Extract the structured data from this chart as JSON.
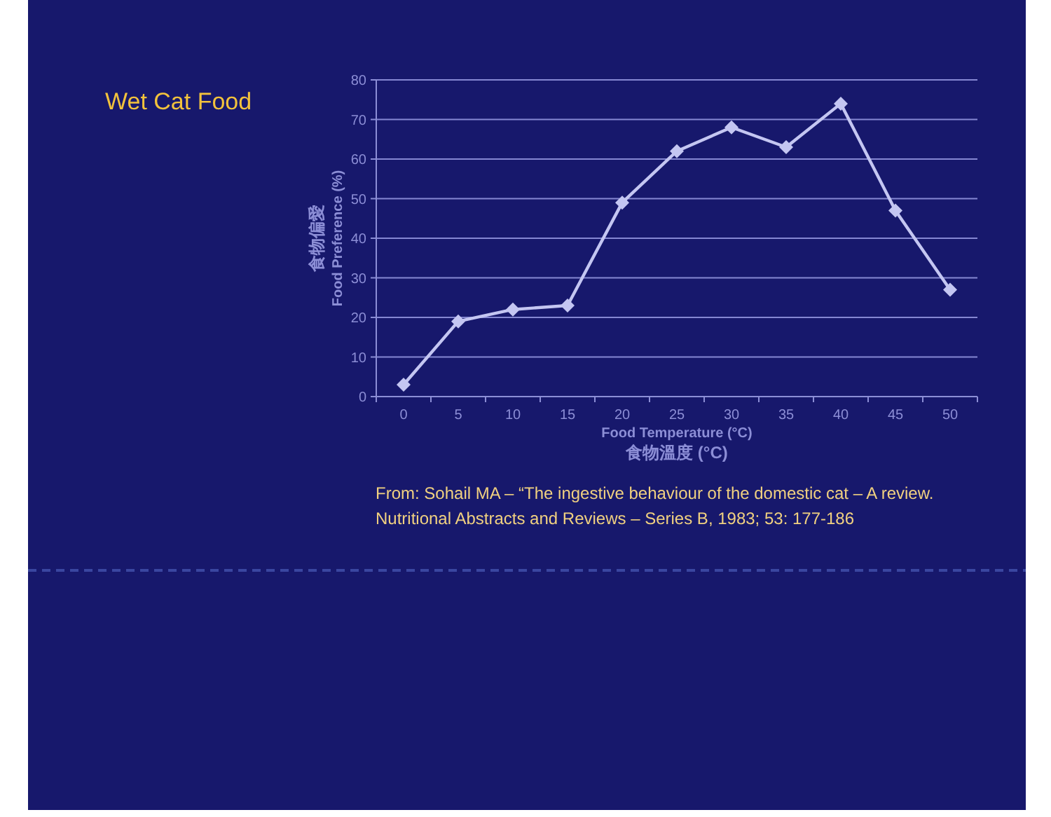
{
  "chart_data": {
    "type": "line",
    "title": "Wet Cat Food",
    "categories": [
      "0",
      "5",
      "10",
      "15",
      "20",
      "25",
      "30",
      "35",
      "40",
      "45",
      "50"
    ],
    "series": [
      {
        "color": "#c4c6f2",
        "values": [
          3,
          19,
          22,
          23,
          49,
          62,
          68,
          63,
          74,
          47,
          27
        ]
      }
    ],
    "xlabel": "Food Temperature (°C)\n食物溫度 (°C)",
    "ylabel": "食物偏愛\nFood Preference (%)",
    "ylim": [
      0,
      80
    ],
    "yticks": [
      0,
      10,
      20,
      30,
      40,
      50,
      60,
      70,
      80
    ],
    "grid": "y",
    "marker": "diamond",
    "line_style": "solid",
    "annotations": [
      "From: Sohail MA – “The ingestive behaviour of the domestic cat – A review.\nNutritional Abstracts and Reviews – Series B, 1983; 53: 177-186"
    ]
  }
}
